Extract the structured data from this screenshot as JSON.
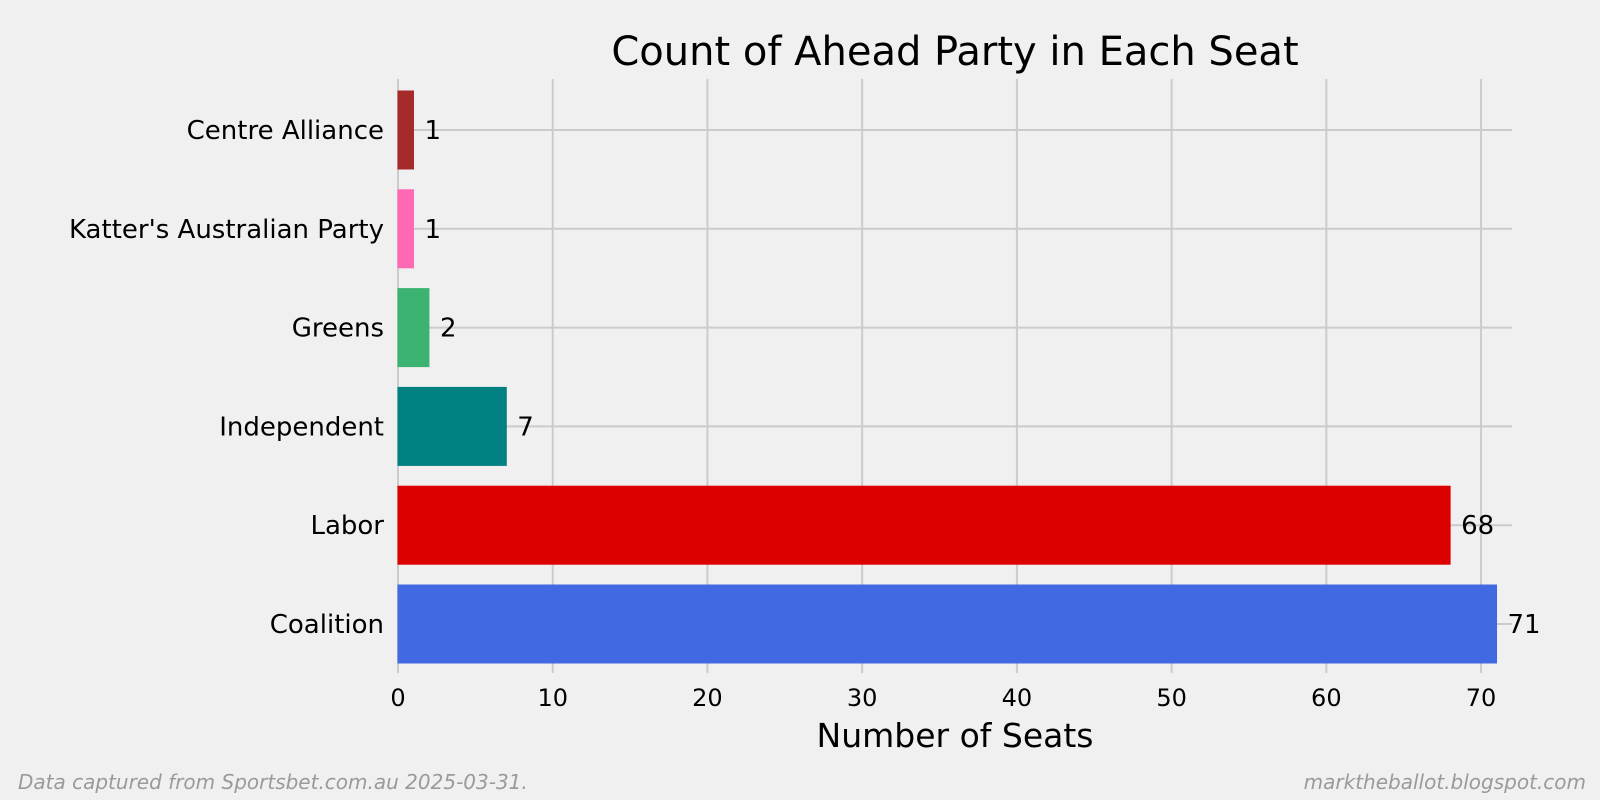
{
  "chart_data": {
    "type": "bar",
    "orientation": "horizontal",
    "title": "Count of Ahead Party in Each Seat",
    "xlabel": "Number of Seats",
    "ylabel": "",
    "categories": [
      "Centre Alliance",
      "Katter's Australian Party",
      "Greens",
      "Independent",
      "Labor",
      "Coalition"
    ],
    "values": [
      1,
      1,
      2,
      7,
      68,
      71
    ],
    "colors": [
      "#a52a2a",
      "#ff69b4",
      "#3cb371",
      "#008080",
      "#dd0000",
      "#4169e1"
    ],
    "xlim": [
      0,
      72
    ],
    "xticks": [
      0,
      10,
      20,
      30,
      40,
      50,
      60,
      70
    ],
    "grid": true,
    "data_labels": true
  },
  "footer": {
    "source": "Data captured from Sportsbet.com.au 2025-03-31.",
    "site": "marktheballot.blogspot.com"
  },
  "colors": {
    "background": "#f0f0f0",
    "grid": "#cbcbcb",
    "text": "#000000",
    "footer_text": "#9a9a9a"
  }
}
